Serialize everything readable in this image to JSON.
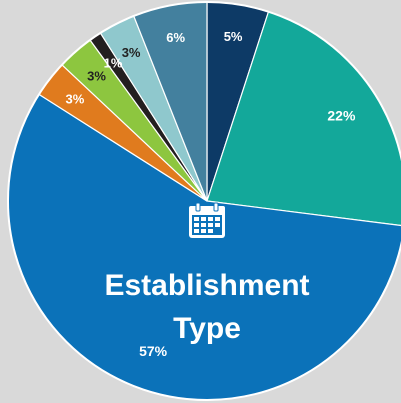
{
  "chart_data": {
    "type": "pie",
    "title_lines": [
      "Establishment",
      "Type"
    ],
    "slices": [
      {
        "label": "5%",
        "value": 5,
        "color": "#0d3a66"
      },
      {
        "label": "22%",
        "value": 22,
        "color": "#13a89a"
      },
      {
        "label": "57%",
        "value": 57,
        "color": "#0b72b9"
      },
      {
        "label": "3%",
        "value": 3,
        "color": "#e07b1e"
      },
      {
        "label": "3%",
        "value": 3,
        "color": "#8dc63f"
      },
      {
        "label": "1%",
        "value": 1,
        "color": "#231f20"
      },
      {
        "label": "3%",
        "value": 3,
        "color": "#8fc8cd"
      },
      {
        "label": "6%",
        "value": 6,
        "color": "#43809e"
      }
    ],
    "icon": "calendar-icon"
  }
}
